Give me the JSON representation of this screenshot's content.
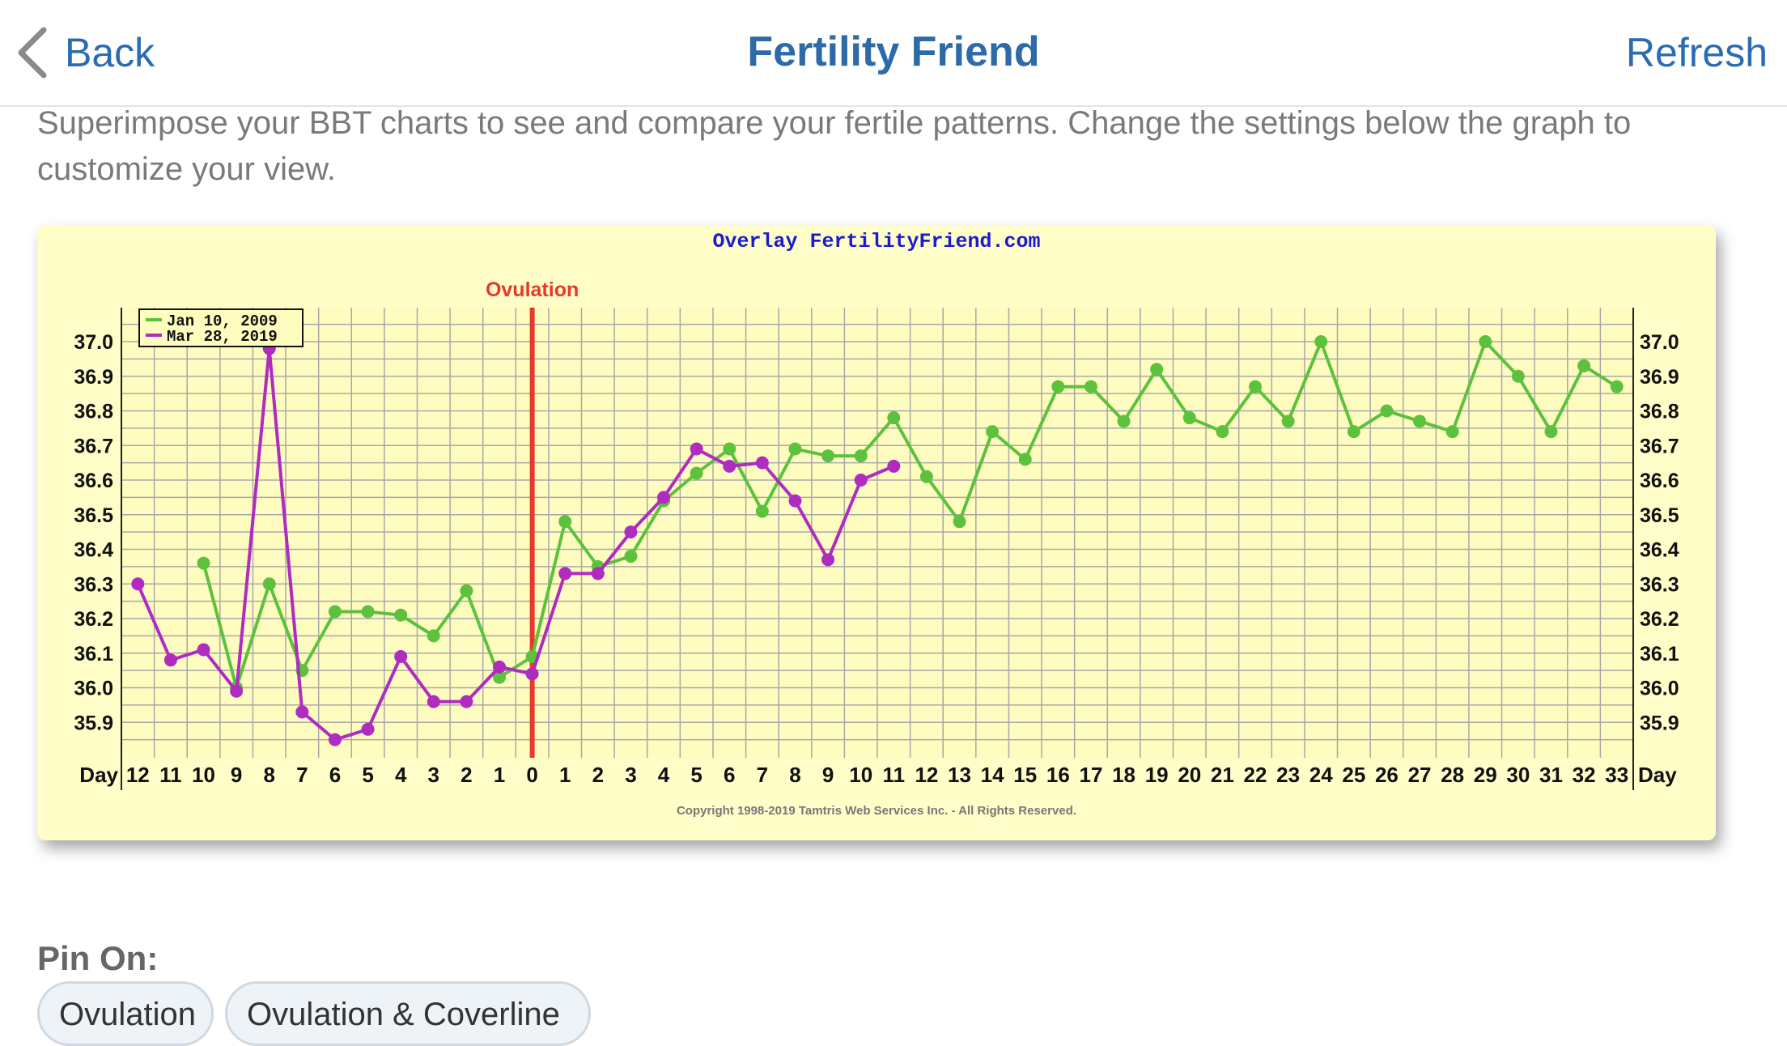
{
  "nav": {
    "back_label": "Back",
    "title": "Fertility Friend",
    "refresh_label": "Refresh"
  },
  "intro_text": "Superimpose your BBT charts to see and compare your fertile patterns. Change the settings below the graph to customize your view.",
  "pin": {
    "label": "Pin On:",
    "options": [
      "Ovulation",
      "Ovulation & Coverline"
    ]
  },
  "colors": {
    "accent": "#2b6cb0",
    "series1": "#5cc23e",
    "series2": "#b02bc0",
    "ovulation": "#e8392b",
    "chart_bg": "#fffdc8"
  },
  "chart_data": {
    "type": "line",
    "title": "Overlay FertilityFriend.com",
    "copyright": "Copyright 1998-2019 Tamtris Web Services Inc. - All Rights Reserved.",
    "marker_label": "Ovulation",
    "marker_x": 0,
    "axis_label_left": "Day",
    "axis_label_right": "Day",
    "x": [
      -12,
      -11,
      -10,
      -9,
      -8,
      -7,
      -6,
      -5,
      -4,
      -3,
      -2,
      -1,
      0,
      1,
      2,
      3,
      4,
      5,
      6,
      7,
      8,
      9,
      10,
      11,
      12,
      13,
      14,
      15,
      16,
      17,
      18,
      19,
      20,
      21,
      22,
      23,
      24,
      25,
      26,
      27,
      28,
      29,
      30,
      31,
      32,
      33
    ],
    "x_tick_labels": [
      "12",
      "11",
      "10",
      "9",
      "8",
      "7",
      "6",
      "5",
      "4",
      "3",
      "2",
      "1",
      "0",
      "1",
      "2",
      "3",
      "4",
      "5",
      "6",
      "7",
      "8",
      "9",
      "10",
      "11",
      "12",
      "13",
      "14",
      "15",
      "16",
      "17",
      "18",
      "19",
      "20",
      "21",
      "22",
      "23",
      "24",
      "25",
      "26",
      "27",
      "28",
      "29",
      "30",
      "31",
      "32",
      "33"
    ],
    "y_ticks": [
      "37.0",
      "36.9",
      "36.8",
      "36.7",
      "36.6",
      "36.5",
      "36.4",
      "36.3",
      "36.2",
      "36.1",
      "36.0",
      "35.9"
    ],
    "ylim": [
      35.8,
      37.1
    ],
    "grid": true,
    "legend_position": "top-left",
    "series": [
      {
        "name": "Jan 10, 2009",
        "color": "#5cc23e",
        "x": [
          -10,
          -9,
          -8,
          -7,
          -6,
          -5,
          -4,
          -3,
          -2,
          -1,
          0,
          1,
          2,
          3,
          4,
          5,
          6,
          7,
          8,
          9,
          10,
          11,
          12,
          13,
          14,
          15,
          16,
          17,
          18,
          19,
          20,
          21,
          22,
          23,
          24,
          25,
          26,
          27,
          28,
          29,
          30,
          31,
          32,
          33
        ],
        "values": [
          36.36,
          36.0,
          36.3,
          36.05,
          36.22,
          36.22,
          36.21,
          36.15,
          36.28,
          36.03,
          36.09,
          36.48,
          36.35,
          36.38,
          36.54,
          36.62,
          36.69,
          36.51,
          36.69,
          36.67,
          36.67,
          36.78,
          36.61,
          36.48,
          36.74,
          36.66,
          36.87,
          36.87,
          36.77,
          36.92,
          36.78,
          36.74,
          36.87,
          36.77,
          37.0,
          36.74,
          36.8,
          36.77,
          36.74,
          37.0,
          36.9,
          36.74,
          36.93,
          36.87
        ]
      },
      {
        "name": "Mar 28, 2019",
        "color": "#b02bc0",
        "x": [
          -12,
          -11,
          -10,
          -9,
          -8,
          -7,
          -6,
          -5,
          -4,
          -3,
          -2,
          -1,
          0,
          1,
          2,
          3,
          4,
          5,
          6,
          7,
          8,
          9,
          10,
          11
        ],
        "values": [
          36.3,
          36.08,
          36.11,
          35.99,
          36.98,
          35.93,
          35.85,
          35.88,
          36.09,
          35.96,
          35.96,
          36.06,
          36.04,
          36.33,
          36.33,
          36.45,
          36.55,
          36.69,
          36.64,
          36.65,
          36.54,
          36.37,
          36.6,
          36.64
        ]
      }
    ]
  }
}
